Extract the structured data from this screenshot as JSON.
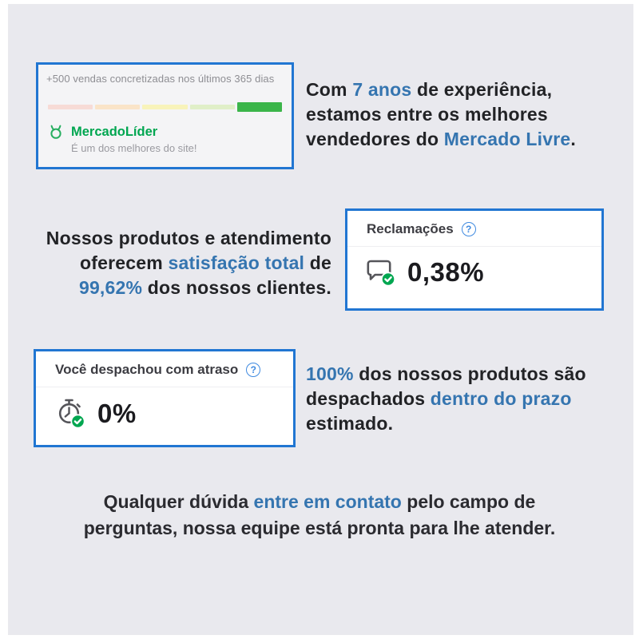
{
  "colors": {
    "panel_bg": "#e9e9ee",
    "card_border": "#2176d2",
    "highlight_blue": "#3575b0",
    "dark_text": "#222326",
    "green": "#00a650"
  },
  "sales_card": {
    "title": "+500 vendas concretizadas nos últimos 365 dias",
    "bar_segments": [
      {
        "color": "#f7dbd6",
        "tall": false
      },
      {
        "color": "#fae4c8",
        "tall": false
      },
      {
        "color": "#f8f3ba",
        "tall": false
      },
      {
        "color": "#e0efc8",
        "tall": false
      },
      {
        "color": "#3bb54a",
        "tall": true
      }
    ],
    "leader_label": "MercadoLíder",
    "leader_subtitle": "É um dos melhores do site!"
  },
  "experience_text": {
    "lines": [
      [
        {
          "t": "Com ",
          "hl": false
        },
        {
          "t": "7 anos",
          "hl": true
        },
        {
          "t": " de experiência,",
          "hl": false
        }
      ],
      [
        {
          "t": "estamos entre os melhores",
          "hl": false
        }
      ],
      [
        {
          "t": "vendedores do ",
          "hl": false
        },
        {
          "t": "Mercado Livre",
          "hl": true
        },
        {
          "t": ".",
          "hl": false
        }
      ]
    ]
  },
  "satisfaction_text": {
    "lines": [
      [
        {
          "t": "Nossos produtos e atendimento",
          "hl": false
        }
      ],
      [
        {
          "t": "oferecem ",
          "hl": false
        },
        {
          "t": "satisfação total",
          "hl": true
        },
        {
          "t": " de",
          "hl": false
        }
      ],
      [
        {
          "t": "99,62%",
          "hl": true
        },
        {
          "t": " dos nossos clientes.",
          "hl": false
        }
      ]
    ]
  },
  "complaints_card": {
    "title": "Reclamações",
    "help": "?",
    "value": "0,38%"
  },
  "dispatch_card": {
    "title": "Você despachou com atraso",
    "help": "?",
    "value": "0%"
  },
  "dispatch_text": {
    "lines": [
      [
        {
          "t": "100%",
          "hl": true
        },
        {
          "t": " dos nossos produtos são",
          "hl": false
        }
      ],
      [
        {
          "t": "despachados ",
          "hl": false
        },
        {
          "t": "dentro do prazo",
          "hl": true
        }
      ],
      [
        {
          "t": "estimado.",
          "hl": false
        }
      ]
    ]
  },
  "footer_text": {
    "lines": [
      [
        {
          "t": "Qualquer dúvida ",
          "hl": false
        },
        {
          "t": "entre em contato",
          "hl": true
        },
        {
          "t": " pelo campo de",
          "hl": false
        }
      ],
      [
        {
          "t": "perguntas, nossa equipe está pronta para lhe atender.",
          "hl": false
        }
      ]
    ]
  }
}
